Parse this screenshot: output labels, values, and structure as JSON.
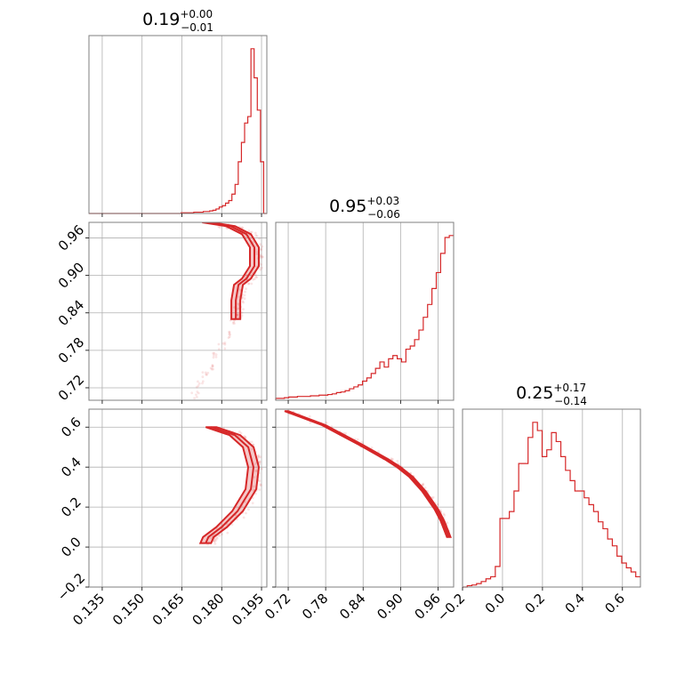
{
  "chart_data": {
    "type": "corner",
    "color": "#d62728",
    "grid": true,
    "parameters": [
      {
        "title": {
          "value": "0.19",
          "plus": "+0.00",
          "minus": "−0.01"
        },
        "range": [
          0.13,
          0.197
        ],
        "ticks": [
          0.135,
          0.15,
          0.165,
          0.18,
          0.195
        ],
        "tick_labels": [
          "0.135",
          "0.150",
          "0.165",
          "0.180",
          "0.195"
        ]
      },
      {
        "title": {
          "value": "0.95",
          "plus": "+0.03",
          "minus": "−0.06"
        },
        "range": [
          0.7,
          0.985
        ],
        "ticks": [
          0.72,
          0.78,
          0.84,
          0.9,
          0.96
        ],
        "tick_labels": [
          "0.72",
          "0.78",
          "0.84",
          "0.90",
          "0.96"
        ]
      },
      {
        "title": {
          "value": "0.25",
          "plus": "+0.17",
          "minus": "−0.14"
        },
        "range": [
          -0.2,
          0.69
        ],
        "ticks": [
          -0.2,
          0.0,
          0.2,
          0.4,
          0.6
        ],
        "tick_labels": [
          "−0.2",
          "0.0",
          "0.2",
          "0.4",
          "0.6"
        ]
      }
    ],
    "histograms": [
      {
        "edges_start": 0.13,
        "edges_end": 0.197,
        "counts": [
          0,
          0,
          0,
          0,
          0,
          0,
          0,
          0,
          0,
          0,
          0,
          0,
          0,
          0,
          0,
          0,
          0,
          0,
          0,
          0,
          0,
          0,
          0,
          0,
          0,
          0,
          0,
          0,
          0,
          1,
          1,
          1,
          1,
          2,
          2,
          2,
          3,
          3,
          4,
          5,
          7,
          10,
          12,
          16,
          20,
          30,
          45,
          80,
          110,
          140,
          150,
          255,
          210,
          160,
          80,
          0
        ]
      },
      {
        "edges_start": 0.7,
        "edges_end": 0.985,
        "counts": [
          3,
          3,
          4,
          5,
          5,
          6,
          6,
          6,
          7,
          7,
          8,
          8,
          9,
          10,
          12,
          13,
          15,
          18,
          21,
          24,
          30,
          35,
          42,
          50,
          60,
          52,
          65,
          70,
          65,
          60,
          80,
          85,
          95,
          110,
          130,
          150,
          175,
          200,
          230,
          255,
          258
        ]
      },
      {
        "edges_start": -0.2,
        "edges_end": 0.69,
        "counts": [
          0,
          2,
          3,
          5,
          8,
          12,
          15,
          30,
          100,
          100,
          110,
          140,
          180,
          180,
          218,
          240,
          228,
          190,
          200,
          225,
          212,
          190,
          170,
          155,
          140,
          140,
          130,
          120,
          110,
          95,
          85,
          70,
          60,
          45,
          35,
          28,
          22,
          15
        ]
      }
    ],
    "curve_12": {
      "x": [
        0.176,
        0.185,
        0.191,
        0.194,
        0.194,
        0.191,
        0.188,
        0.187,
        0.187
      ],
      "y": [
        0.985,
        0.979,
        0.966,
        0.945,
        0.915,
        0.895,
        0.885,
        0.86,
        0.83
      ]
    },
    "scatter_12_tail": {
      "x": [
        0.186,
        0.184,
        0.182,
        0.18,
        0.178,
        0.176,
        0.174,
        0.172,
        0.17
      ],
      "y": [
        0.85,
        0.825,
        0.805,
        0.787,
        0.77,
        0.755,
        0.74,
        0.725,
        0.708
      ]
    },
    "curve_13": {
      "x": [
        0.178,
        0.187,
        0.192,
        0.194,
        0.193,
        0.188,
        0.182,
        0.177,
        0.176
      ],
      "y": [
        0.6,
        0.56,
        0.5,
        0.4,
        0.29,
        0.18,
        0.1,
        0.05,
        0.02
      ]
    },
    "curve_23": {
      "x": [
        0.72,
        0.78,
        0.84,
        0.88,
        0.9,
        0.92,
        0.94,
        0.96,
        0.97,
        0.98
      ],
      "y": [
        0.68,
        0.61,
        0.51,
        0.44,
        0.4,
        0.35,
        0.28,
        0.19,
        0.13,
        0.05
      ]
    }
  }
}
